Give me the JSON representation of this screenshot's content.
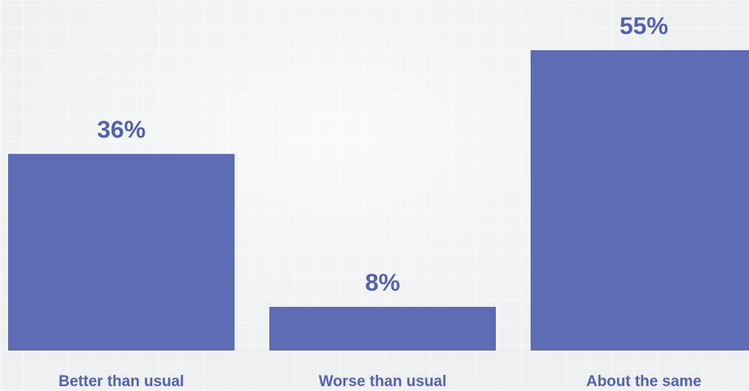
{
  "colors": {
    "bar": "#5e6bb5",
    "value_label": "#5561ad",
    "category_label": "#5561ad",
    "background": "#eef0f1"
  },
  "chart_data": {
    "type": "bar",
    "title": "",
    "xlabel": "",
    "ylabel": "",
    "categories": [
      "Better than usual",
      "Worse than usual",
      "About the same"
    ],
    "values": [
      36,
      8,
      55
    ],
    "value_labels": [
      "36%",
      "8%",
      "55%"
    ],
    "unit": "%",
    "ylim": [
      0,
      55
    ],
    "grid": false,
    "legend": "none"
  }
}
